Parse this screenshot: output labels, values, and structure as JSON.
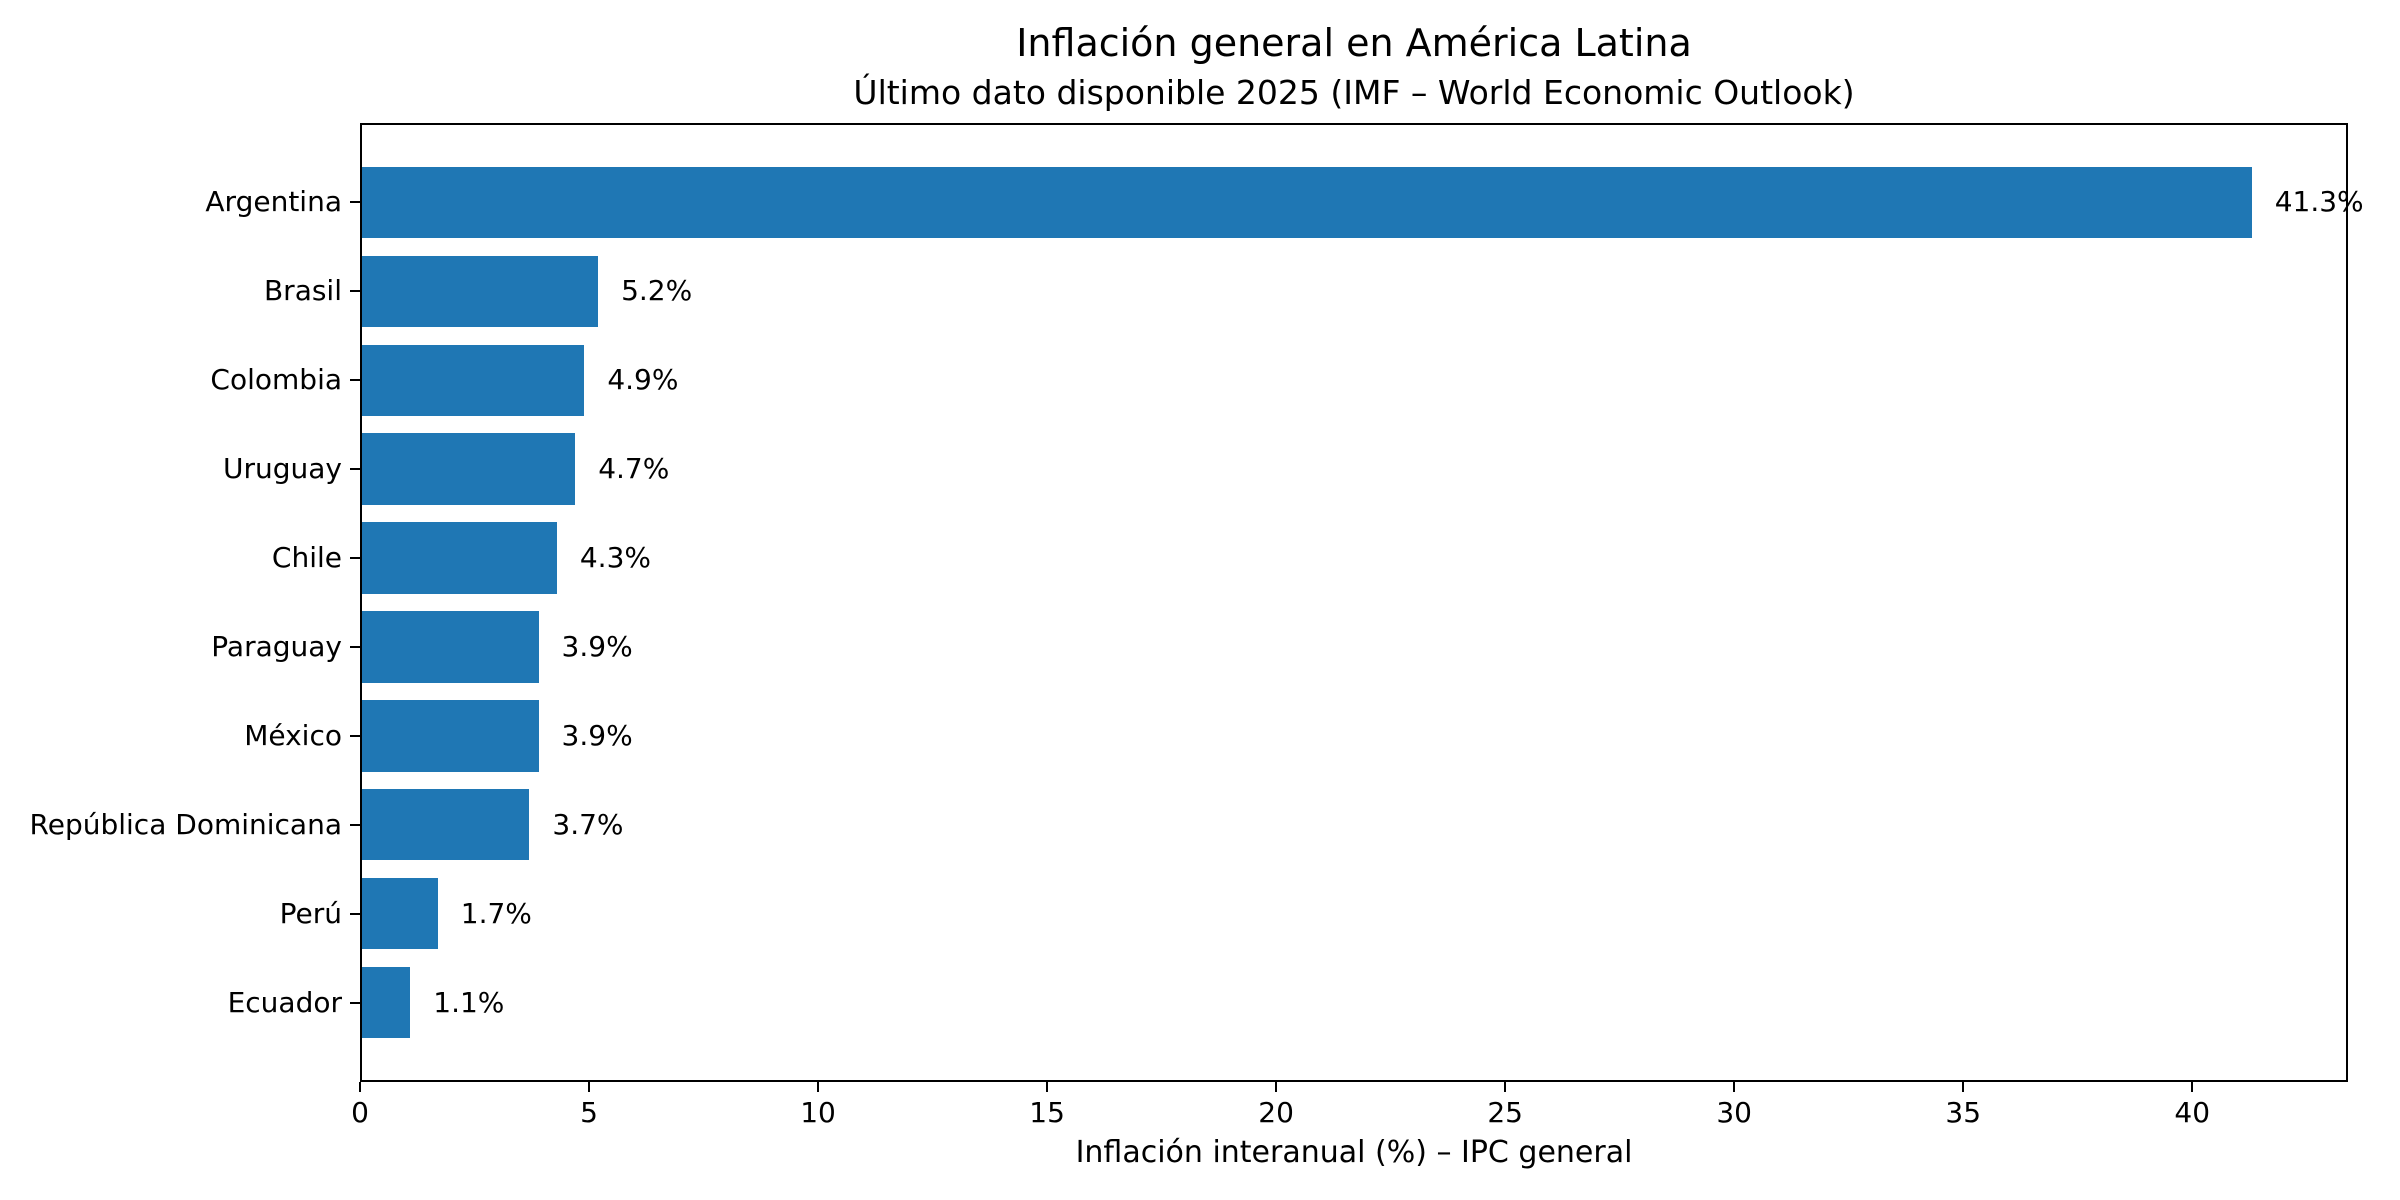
{
  "chart_data": {
    "type": "bar",
    "orientation": "horizontal",
    "title": "Inflación general en América Latina",
    "subtitle": "Último dato disponible 2025 (IMF – World Economic Outlook)",
    "xlabel": "Inflación interanual (%) – IPC general",
    "ylabel": "",
    "categories": [
      "Argentina",
      "Brasil",
      "Colombia",
      "Uruguay",
      "Chile",
      "Paraguay",
      "México",
      "República Dominicana",
      "Perú",
      "Ecuador"
    ],
    "values": [
      41.3,
      5.2,
      4.9,
      4.7,
      4.3,
      3.9,
      3.9,
      3.7,
      1.7,
      1.1
    ],
    "value_labels": [
      "41.3%",
      "5.2%",
      "4.9%",
      "4.7%",
      "4.3%",
      "3.9%",
      "3.9%",
      "3.7%",
      "1.7%",
      "1.1%"
    ],
    "xticks": [
      0,
      5,
      10,
      15,
      20,
      25,
      30,
      35,
      40
    ],
    "xlim": [
      0,
      43.4
    ],
    "grid": false,
    "legend": null,
    "bar_color": "#1f77b4",
    "background_color": "#ffffff",
    "text_color": "#000000"
  }
}
